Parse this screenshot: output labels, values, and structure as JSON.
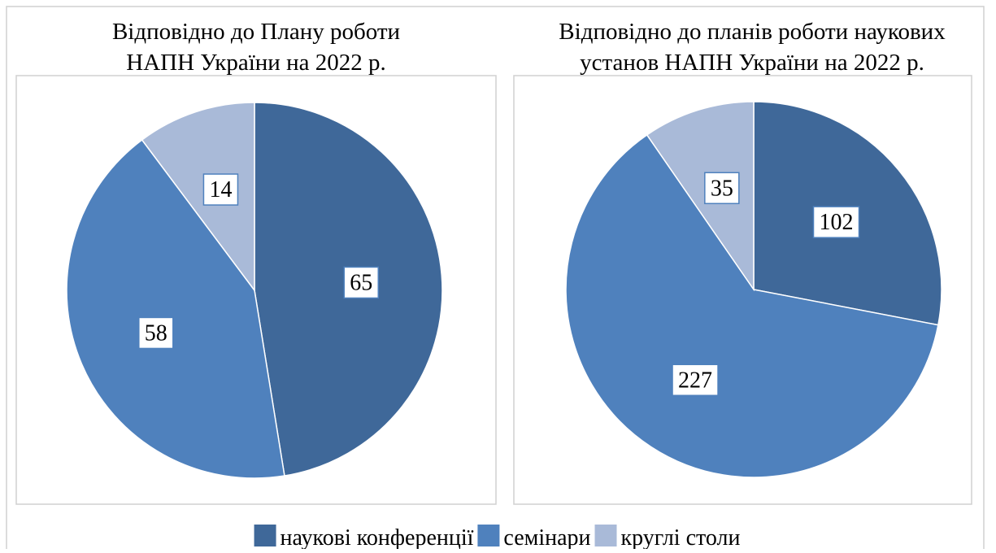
{
  "chart_data": [
    {
      "type": "pie",
      "title": [
        "Відповідно до Плану роботи",
        "НАПН України на 2022 р."
      ],
      "categories": [
        "наукові конференції",
        "семінари",
        "круглі столи"
      ],
      "values": [
        65,
        58,
        14
      ],
      "colors": [
        "#3f6899",
        "#4f81bd",
        "#a9bad8"
      ]
    },
    {
      "type": "pie",
      "title": [
        "Відповідно до планів роботи наукових",
        "установ НАПН України на 2022 р."
      ],
      "categories": [
        "наукові конференції",
        "семінари",
        "круглі столи"
      ],
      "values": [
        102,
        227,
        35
      ],
      "colors": [
        "#3f6899",
        "#4f81bd",
        "#a9bad8"
      ]
    }
  ]
}
